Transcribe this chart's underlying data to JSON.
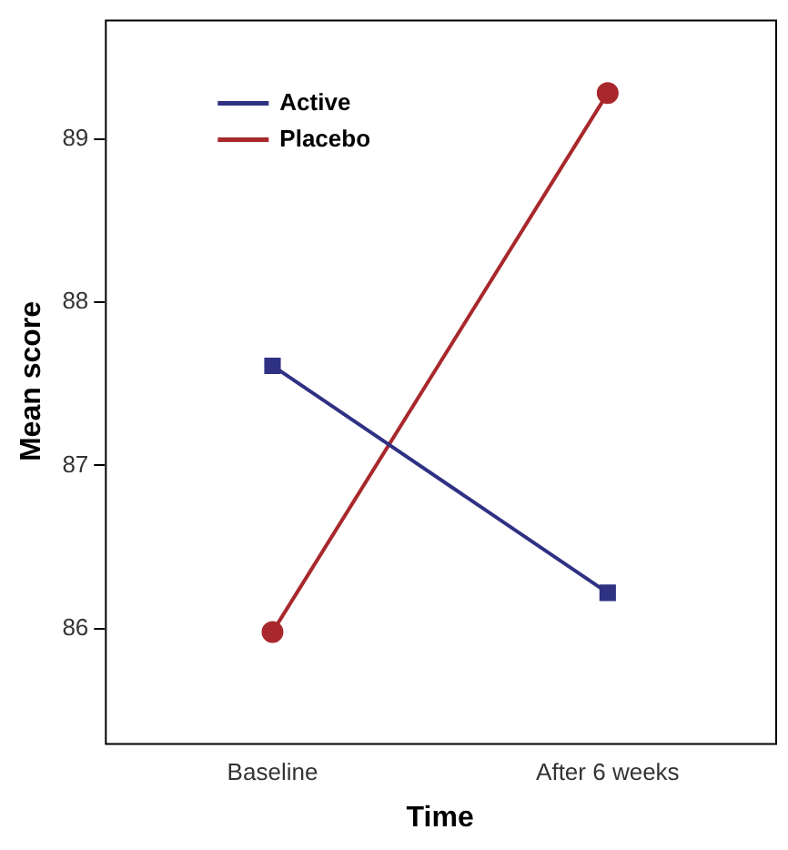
{
  "chart_data": {
    "type": "line",
    "xlabel": "Time",
    "ylabel": "Mean score",
    "categories": [
      "Baseline",
      "After 6 weeks"
    ],
    "series": [
      {
        "name": "Active",
        "color": "#2f3183",
        "values": [
          87.61,
          86.22
        ],
        "marker": "square"
      },
      {
        "name": "Placebo",
        "color": "#a8282c",
        "values": [
          85.98,
          89.28
        ],
        "marker": "circle"
      }
    ],
    "ylim": [
      85.3,
      89.73
    ],
    "yticks": [
      86,
      87,
      88,
      89
    ],
    "grid": false,
    "legend": "top left",
    "line_style": "solid"
  }
}
